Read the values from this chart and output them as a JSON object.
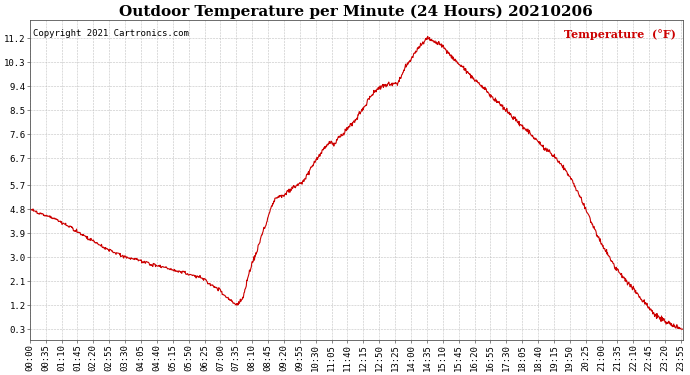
{
  "title": "Outdoor Temperature per Minute (24 Hours) 20210206",
  "copyright_text": "Copyright 2021 Cartronics.com",
  "legend_label": "Temperature  (°F)",
  "line_color": "#cc0000",
  "background_color": "#ffffff",
  "grid_color": "#bbbbbb",
  "yticks": [
    0.3,
    1.2,
    2.1,
    3.0,
    3.9,
    4.8,
    5.7,
    6.7,
    7.6,
    8.5,
    9.4,
    10.3,
    11.2
  ],
  "ylim": [
    -0.1,
    11.9
  ],
  "num_minutes": 1440,
  "x_tick_interval": 35,
  "title_fontsize": 11,
  "axis_fontsize": 6.5,
  "key_points_x": [
    0,
    30,
    60,
    90,
    120,
    150,
    180,
    210,
    240,
    270,
    300,
    340,
    380,
    420,
    455,
    470,
    480,
    490,
    500,
    510,
    520,
    530,
    540,
    550,
    560,
    570,
    580,
    590,
    600,
    615,
    630,
    645,
    660,
    670,
    680,
    690,
    700,
    710,
    720,
    730,
    740,
    750,
    760,
    775,
    790,
    810,
    830,
    850,
    865,
    875,
    890,
    910,
    930,
    960,
    990,
    1020,
    1050,
    1080,
    1110,
    1140,
    1160,
    1180,
    1200,
    1220,
    1240,
    1260,
    1290,
    1320,
    1350,
    1380,
    1410,
    1435
  ],
  "key_points_y": [
    4.8,
    4.6,
    4.4,
    4.1,
    3.8,
    3.5,
    3.2,
    3.0,
    2.9,
    2.7,
    2.6,
    2.4,
    2.2,
    1.7,
    1.2,
    1.5,
    2.2,
    2.8,
    3.2,
    3.8,
    4.2,
    4.8,
    5.2,
    5.3,
    5.3,
    5.5,
    5.6,
    5.7,
    5.8,
    6.2,
    6.6,
    7.0,
    7.3,
    7.2,
    7.5,
    7.6,
    7.8,
    8.0,
    8.2,
    8.5,
    8.7,
    9.0,
    9.2,
    9.4,
    9.5,
    9.5,
    10.2,
    10.7,
    11.0,
    11.2,
    11.1,
    10.9,
    10.5,
    10.0,
    9.5,
    9.0,
    8.5,
    8.0,
    7.5,
    7.0,
    6.7,
    6.3,
    5.7,
    5.0,
    4.2,
    3.5,
    2.6,
    2.0,
    1.4,
    0.8,
    0.5,
    0.3
  ]
}
